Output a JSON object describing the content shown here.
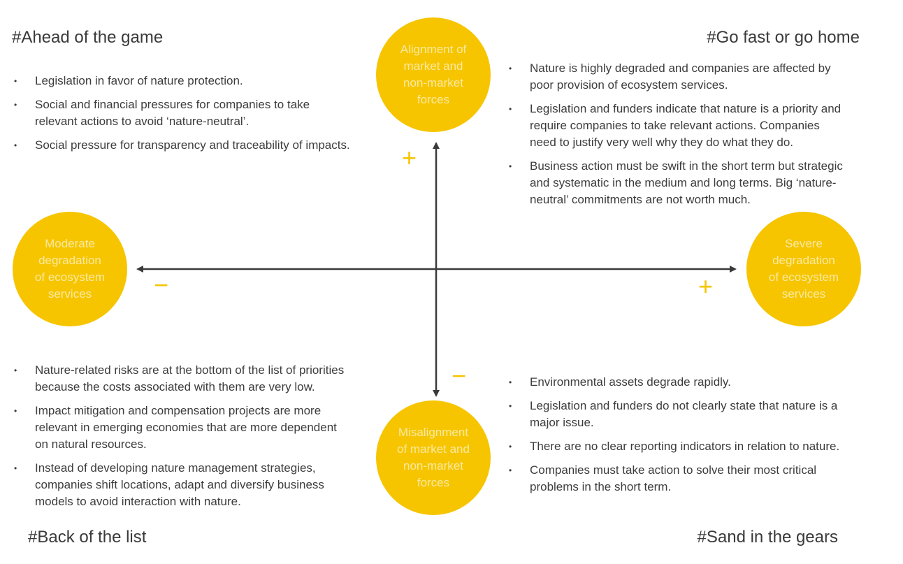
{
  "quadrants": {
    "top_left": {
      "title": "#Ahead of the game",
      "items": [
        "Legislation in favor of nature protection.",
        "Social and financial pressures for companies to take\nrelevant actions to avoid ‘nature-neutral’.",
        "Social pressure for transparency and traceability of impacts."
      ]
    },
    "top_right": {
      "title": "#Go fast or go home",
      "items": [
        "Nature is highly degraded and companies are affected by\npoor provision of ecosystem services.",
        "Legislation and funders indicate that nature is a priority and\nrequire companies to take relevant actions. Companies\nneed to justify very well why they do what they do.",
        "Business action must be swift in the short term but strategic\nand systematic in the medium and long terms. Big ‘nature-\nneutral’ commitments are not worth much."
      ]
    },
    "bottom_left": {
      "title": "#Back of the list",
      "items": [
        "Nature-related risks are at the bottom of the list of priorities\nbecause the costs associated with them are very low.",
        "Impact mitigation and compensation projects are more\nrelevant in emerging economies that are more dependent\non natural resources.",
        "Instead of developing nature management strategies,\ncompanies shift locations, adapt and diversify business\nmodels to avoid interaction with nature."
      ]
    },
    "bottom_right": {
      "title": "#Sand in the gears",
      "items": [
        "Environmental assets degrade rapidly.",
        "Legislation and funders do not clearly state that nature is a\nmajor issue.",
        "There are no clear reporting indicators in relation to nature.",
        "Companies must take action to solve their most critical\nproblems in the short term."
      ]
    }
  },
  "axes": {
    "top": "Alignment of\nmarket and\nnon-market\nforces",
    "bottom": "Misalignment\nof market and\nnon-market\nforces",
    "left": "Moderate\ndegradation\nof ecosystem\nservices",
    "right": "Severe\ndegradation\nof ecosystem\nservices",
    "plus": "+",
    "minus": "−"
  },
  "colors": {
    "accent": "#f6c500",
    "axis": "#3a3a3a",
    "text": "#3c3c3c"
  }
}
